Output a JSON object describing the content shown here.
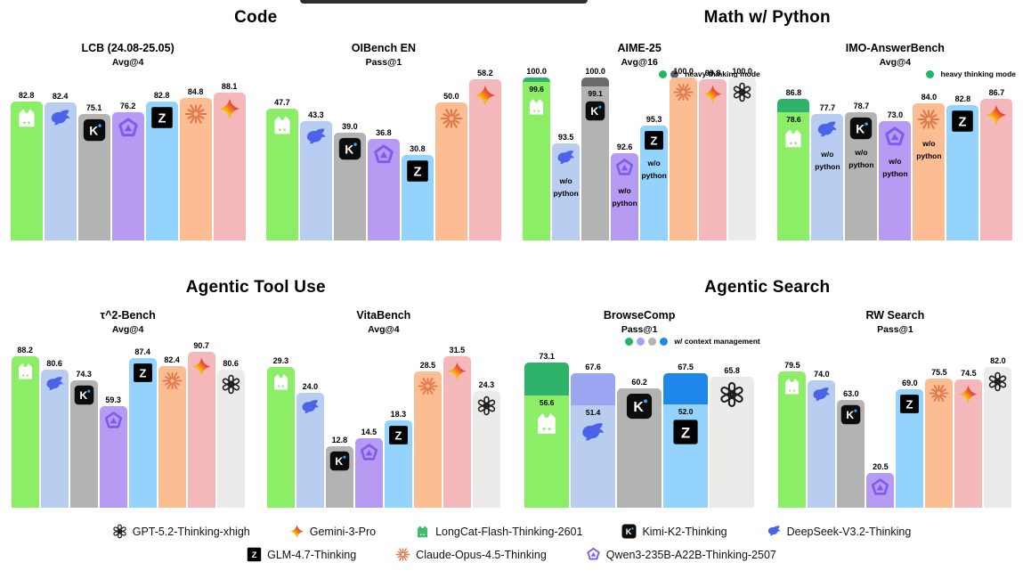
{
  "page": {
    "background": "#ffffff",
    "banner_color": "#2e2e2e"
  },
  "sections": [
    {
      "label": "Code"
    },
    {
      "label": "Math w/ Python"
    },
    {
      "label": "Agentic Tool Use"
    },
    {
      "label": "Agentic Search"
    }
  ],
  "models": {
    "longcat": {
      "name": "LongCat-Flash-Thinking-2601",
      "color": "#8cee66",
      "cap_color": "#2fb36a",
      "icon": "longcat-icon",
      "bar_glyph": "#ffffff",
      "legend_glyph": "#3bbf6f"
    },
    "deepseek": {
      "name": "DeepSeek-V3.2-Thinking",
      "color": "#b9cdf0",
      "cap_color": "#9aa6f2",
      "icon": "deepseek-icon",
      "glyph": "#4a63e8"
    },
    "kimi": {
      "name": "Kimi-K2-Thinking",
      "color": "#b3b3b3",
      "cap_color": "#6a6a6a",
      "icon": "kimi-icon"
    },
    "qwen": {
      "name": "Qwen3-235B-A22B-Thinking-2507",
      "color": "#b79af2",
      "icon": "qwen-icon",
      "glyph": "#7a5cf0"
    },
    "glm": {
      "name": "GLM-4.7-Thinking",
      "color": "#93d3fc",
      "cap_color": "#1e87e9",
      "icon": "glm-icon"
    },
    "claude": {
      "name": "Claude-Opus-4.5-Thinking",
      "color": "#fcbd92",
      "icon": "claude-icon",
      "glyph": "#e0784a"
    },
    "gemini": {
      "name": "Gemini-3-Pro",
      "color": "#f4b8ba",
      "icon": "gemini-icon"
    },
    "gpt": {
      "name": "GPT-5.2-Thinking-xhigh",
      "color": "#ecebe9",
      "icon": "gpt-icon",
      "glyph": "#1e1e1e"
    }
  },
  "chart_data": [
    {
      "type": "bar",
      "title": "LCB (24.08-25.05)",
      "subtitle": "Avg@4",
      "section": "Code",
      "ylim": [
        0,
        97
      ],
      "bars": [
        {
          "model": "longcat",
          "value": 82.8
        },
        {
          "model": "deepseek",
          "value": 82.4
        },
        {
          "model": "kimi",
          "value": 75.1
        },
        {
          "model": "qwen",
          "value": 76.2
        },
        {
          "model": "glm",
          "value": 82.8
        },
        {
          "model": "claude",
          "value": 84.8
        },
        {
          "model": "gemini",
          "value": 88.1
        }
      ]
    },
    {
      "type": "bar",
      "title": "OIBench EN",
      "subtitle": "Pass@1",
      "section": "Code",
      "ylim": [
        0,
        59
      ],
      "bars": [
        {
          "model": "longcat",
          "value": 47.7
        },
        {
          "model": "deepseek",
          "value": 43.3
        },
        {
          "model": "kimi",
          "value": 39.0
        },
        {
          "model": "qwen",
          "value": 36.8
        },
        {
          "model": "glm",
          "value": 30.8
        },
        {
          "model": "claude",
          "value": 50.0
        },
        {
          "model": "gemini",
          "value": 58.2
        }
      ]
    },
    {
      "type": "bar",
      "title": "AIME-25",
      "subtitle": "Avg@16",
      "section": "Math w/ Python",
      "ylim": [
        84,
        100
      ],
      "mini_legend": {
        "dots": [
          "#1fb863",
          "#5c5c5c"
        ],
        "label": "heavy thinking mode"
      },
      "bars": [
        {
          "model": "longcat",
          "value": 100.0,
          "base": 99.6
        },
        {
          "model": "deepseek",
          "value": 93.5,
          "note": "w/o python"
        },
        {
          "model": "kimi",
          "value": 100.0,
          "base": 99.1
        },
        {
          "model": "qwen",
          "value": 92.6,
          "note": "w/o python"
        },
        {
          "model": "glm",
          "value": 95.3,
          "note": "w/o python"
        },
        {
          "model": "claude",
          "value": 100.0
        },
        {
          "model": "gemini",
          "value": 99.8
        },
        {
          "model": "gpt",
          "value": 100.0
        }
      ]
    },
    {
      "type": "bar",
      "title": "IMO-AnswerBench",
      "subtitle": "Avg@4",
      "section": "Math w/ Python",
      "ylim": [
        0,
        100
      ],
      "mini_legend": {
        "dots": [
          "#1fb863"
        ],
        "label": "heavy thinking mode"
      },
      "bars": [
        {
          "model": "longcat",
          "value": 86.8,
          "base": 78.6
        },
        {
          "model": "deepseek",
          "value": 77.7,
          "note": "w/o python"
        },
        {
          "model": "kimi",
          "value": 78.7,
          "note": "w/o python"
        },
        {
          "model": "qwen",
          "value": 73.0,
          "note": "w/o python"
        },
        {
          "model": "claude",
          "value": 84.0,
          "note": "w/o python"
        },
        {
          "model": "glm",
          "value": 82.8
        },
        {
          "model": "gemini",
          "value": 86.7
        }
      ]
    },
    {
      "type": "bar",
      "title": "τ^2-Bench",
      "subtitle": "Avg@4",
      "section": "Agentic Tool Use",
      "ylim": [
        0,
        95
      ],
      "bars": [
        {
          "model": "longcat",
          "value": 88.2
        },
        {
          "model": "deepseek",
          "value": 80.6
        },
        {
          "model": "kimi",
          "value": 74.3
        },
        {
          "model": "qwen",
          "value": 59.3
        },
        {
          "model": "glm",
          "value": 87.4
        },
        {
          "model": "claude",
          "value": 82.4
        },
        {
          "model": "gemini",
          "value": 90.7
        },
        {
          "model": "gpt",
          "value": 80.6
        }
      ]
    },
    {
      "type": "bar",
      "title": "VitaBench",
      "subtitle": "Avg@4",
      "section": "Agentic Tool Use",
      "ylim": [
        0,
        34
      ],
      "bars": [
        {
          "model": "longcat",
          "value": 29.3
        },
        {
          "model": "deepseek",
          "value": 24.0
        },
        {
          "model": "kimi",
          "value": 12.8
        },
        {
          "model": "qwen",
          "value": 14.5
        },
        {
          "model": "glm",
          "value": 18.3
        },
        {
          "model": "claude",
          "value": 28.5
        },
        {
          "model": "gemini",
          "value": 31.5
        },
        {
          "model": "gpt",
          "value": 24.3
        }
      ]
    },
    {
      "type": "bar",
      "title": "BrowseComp",
      "subtitle": "Pass@1",
      "section": "Agentic Search",
      "ylim": [
        0,
        82
      ],
      "mini_legend": {
        "dots": [
          "#1fb863",
          "#9aa6f2",
          "#b3b3b3",
          "#1e87e9"
        ],
        "label": "w/ context management"
      },
      "bars": [
        {
          "model": "longcat",
          "value": 73.1,
          "base": 56.6
        },
        {
          "model": "deepseek",
          "value": 67.6,
          "base": 51.4
        },
        {
          "model": "kimi",
          "value": 60.2
        },
        {
          "model": "glm",
          "value": 67.5,
          "base": 52.0
        },
        {
          "model": "gpt",
          "value": 65.8
        }
      ]
    },
    {
      "type": "bar",
      "title": "RW Search",
      "subtitle": "Pass@1",
      "section": "Agentic Search",
      "ylim": [
        0,
        95
      ],
      "bars": [
        {
          "model": "longcat",
          "value": 79.5
        },
        {
          "model": "deepseek",
          "value": 74.0
        },
        {
          "model": "kimi",
          "value": 63.0
        },
        {
          "model": "qwen",
          "value": 20.5
        },
        {
          "model": "glm",
          "value": 69.0
        },
        {
          "model": "claude",
          "value": 75.5
        },
        {
          "model": "gemini",
          "value": 74.5
        },
        {
          "model": "gpt",
          "value": 82.0
        }
      ]
    }
  ],
  "legend": {
    "rows": [
      [
        "gpt",
        "gemini",
        "longcat",
        "kimi",
        "deepseek"
      ],
      [
        "glm",
        "claude",
        "qwen"
      ]
    ]
  }
}
